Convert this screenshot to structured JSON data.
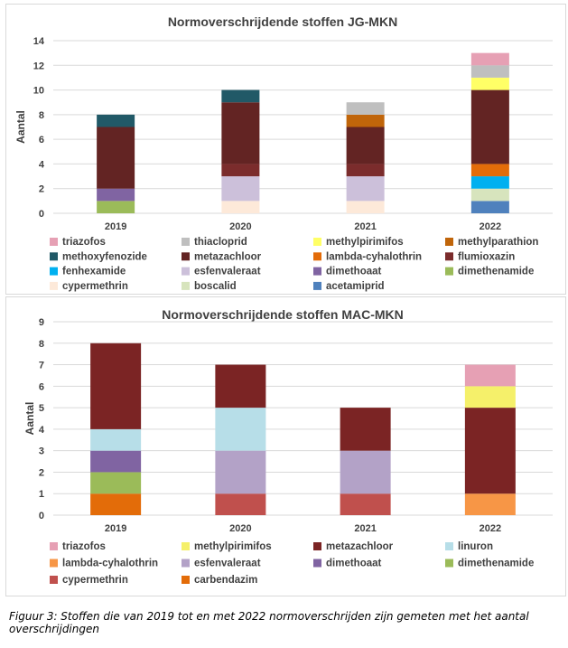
{
  "chart_data": [
    {
      "type": "bar",
      "stacked": true,
      "title": "Normoverschrijdende stoffen JG-MKN",
      "ylabel": "Aantal",
      "xlabel": "",
      "ylim": [
        0,
        14
      ],
      "yticks": [
        0,
        2,
        4,
        6,
        8,
        10,
        12,
        14
      ],
      "categories": [
        "2019",
        "2020",
        "2021",
        "2022"
      ],
      "grid": true,
      "legend_position": "bottom",
      "series": [
        {
          "name": "acetamiprid",
          "color": "#4f81bd",
          "values": [
            0,
            0,
            0,
            1
          ]
        },
        {
          "name": "cypermethrin",
          "color": "#fde9d9",
          "values": [
            0,
            1,
            1,
            0
          ]
        },
        {
          "name": "boscalid",
          "color": "#d7e4bd",
          "values": [
            0,
            0,
            0,
            1
          ]
        },
        {
          "name": "dimethenamide",
          "color": "#9bbb59",
          "values": [
            1,
            0,
            0,
            0
          ]
        },
        {
          "name": "dimethoaat",
          "color": "#8064a2",
          "values": [
            1,
            0,
            0,
            0
          ]
        },
        {
          "name": "esfenvaleraat",
          "color": "#ccc0da",
          "values": [
            0,
            2,
            2,
            0
          ]
        },
        {
          "name": "fenhexamide",
          "color": "#00b0f0",
          "values": [
            0,
            0,
            0,
            1
          ]
        },
        {
          "name": "lambda-cyhalothrin",
          "color": "#e36c09",
          "values": [
            0,
            0,
            0,
            1
          ]
        },
        {
          "name": "flumioxazin",
          "color": "#7b2c2c",
          "values": [
            0,
            1,
            1,
            0
          ]
        },
        {
          "name": "metazachloor",
          "color": "#632423",
          "values": [
            5,
            5,
            3,
            6
          ]
        },
        {
          "name": "methoxyfenozide",
          "color": "#215967",
          "values": [
            1,
            1,
            0,
            0
          ]
        },
        {
          "name": "methylparathion",
          "color": "#c0650a",
          "values": [
            0,
            0,
            1,
            0
          ]
        },
        {
          "name": "methylpirimifos",
          "color": "#ffff66",
          "values": [
            0,
            0,
            0,
            1
          ]
        },
        {
          "name": "thiacloprid",
          "color": "#bfbfbf",
          "values": [
            0,
            0,
            1,
            1
          ]
        },
        {
          "name": "triazofos",
          "color": "#e6a0b4",
          "values": [
            0,
            0,
            0,
            1
          ]
        }
      ],
      "legend": [
        "triazofos",
        "thiacloprid",
        "methylpirimifos",
        "methylparathion",
        "methoxyfenozide",
        "metazachloor",
        "lambda-cyhalothrin",
        "flumioxazin",
        "fenhexamide",
        "esfenvaleraat",
        "dimethoaat",
        "dimethenamide",
        "cypermethrin",
        "boscalid",
        "acetamiprid"
      ]
    },
    {
      "type": "bar",
      "stacked": true,
      "title": "Normoverschrijdende stoffen MAC-MKN",
      "ylabel": "Aantal",
      "xlabel": "",
      "ylim": [
        0,
        9
      ],
      "yticks": [
        0,
        1,
        2,
        3,
        4,
        5,
        6,
        7,
        8,
        9
      ],
      "categories": [
        "2019",
        "2020",
        "2021",
        "2022"
      ],
      "grid": true,
      "legend_position": "bottom",
      "series": [
        {
          "name": "carbendazim",
          "color": "#e36c09",
          "values": [
            1,
            0,
            0,
            0
          ]
        },
        {
          "name": "cypermethrin",
          "color": "#c0504d",
          "values": [
            0,
            1,
            1,
            0
          ]
        },
        {
          "name": "lambda-cyhalothrin",
          "color": "#f79646",
          "values": [
            0,
            0,
            0,
            1
          ]
        },
        {
          "name": "dimethenamide",
          "color": "#9bbb59",
          "values": [
            1,
            0,
            0,
            0
          ]
        },
        {
          "name": "dimethoaat",
          "color": "#8064a2",
          "values": [
            1,
            0,
            0,
            0
          ]
        },
        {
          "name": "esfenvaleraat",
          "color": "#b3a2c7",
          "values": [
            0,
            2,
            2,
            0
          ]
        },
        {
          "name": "linuron",
          "color": "#b7dee8",
          "values": [
            1,
            2,
            0,
            0
          ]
        },
        {
          "name": "metazachloor",
          "color": "#7b2424",
          "values": [
            4,
            2,
            2,
            4
          ]
        },
        {
          "name": "methylpirimifos",
          "color": "#f5f06a",
          "values": [
            0,
            0,
            0,
            1
          ]
        },
        {
          "name": "triazofos",
          "color": "#e6a0b4",
          "values": [
            0,
            0,
            0,
            1
          ]
        }
      ],
      "legend": [
        "triazofos",
        "methylpirimifos",
        "metazachloor",
        "linuron",
        "lambda-cyhalothrin",
        "esfenvaleraat",
        "dimethoaat",
        "dimethenamide",
        "cypermethrin",
        "carbendazim"
      ]
    }
  ],
  "caption": "Figuur 3: Stoffen die van 2019 tot en met 2022 normoverschrijden zijn gemeten met het aantal overschrijdingen"
}
